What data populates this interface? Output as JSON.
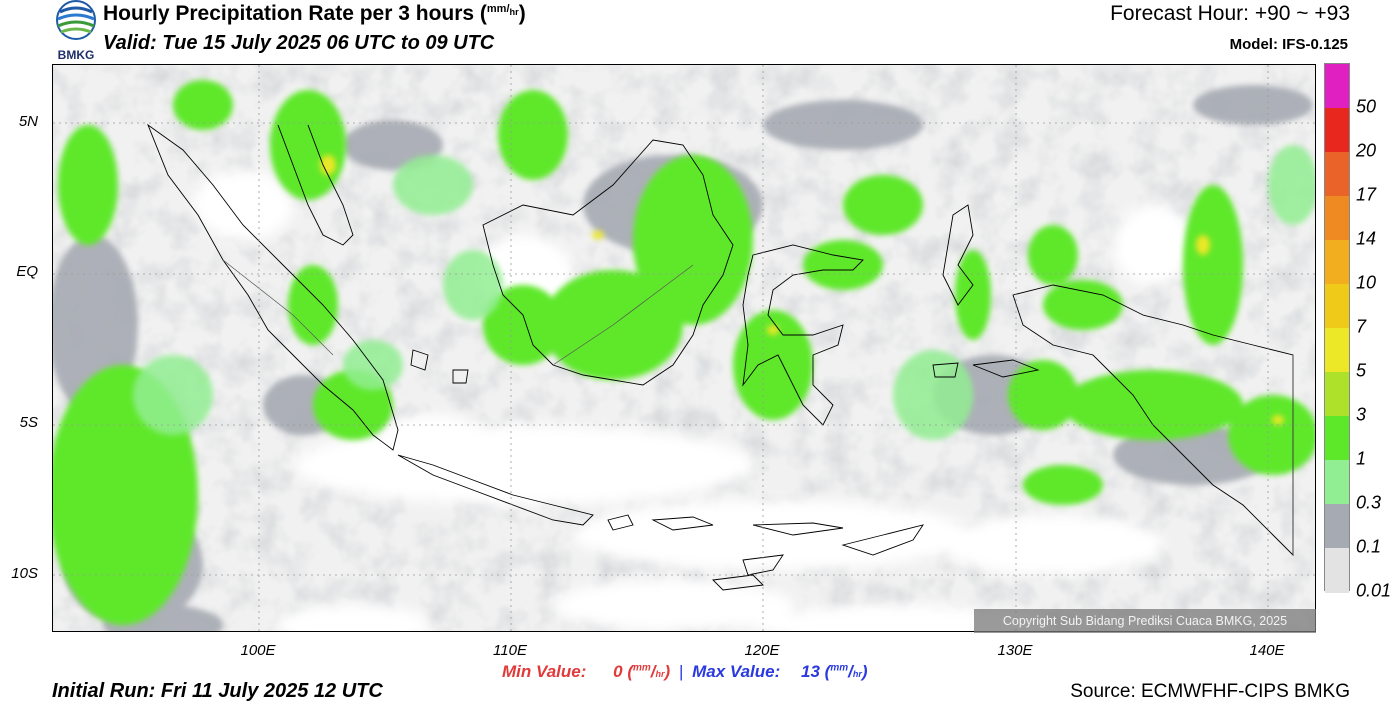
{
  "header": {
    "title": "Hourly Precipitation Rate per 3 hours (",
    "title_unit_num": "mm",
    "title_unit_den": "hr",
    "title_close": ")",
    "valid": "Valid: Tue 15 July 2025 06 UTC to 09 UTC",
    "forecast_hour": "Forecast Hour: +90 ~ +93",
    "model": "Model: IFS-0.125"
  },
  "logo": {
    "text": "BMKG",
    "icon": "bmkg-logo-icon"
  },
  "map": {
    "lat_labels": [
      "5N",
      "EQ",
      "5S",
      "10S"
    ],
    "lon_labels": [
      "100E",
      "110E",
      "120E",
      "130E",
      "140E"
    ],
    "copyright": "Copyright Sub Bidang Prediksi Cuaca BMKG, 2025"
  },
  "legend": {
    "levels": [
      "50",
      "20",
      "17",
      "14",
      "10",
      "7",
      "5",
      "3",
      "1",
      "0.3",
      "0.1",
      "0.01"
    ],
    "colors": [
      "#e020c0",
      "#e8281e",
      "#ea6328",
      "#ef8a22",
      "#f2ae1e",
      "#f0ca18",
      "#ece828",
      "#aee22a",
      "#5ee82a",
      "#92ee92",
      "#a6aab2",
      "#e3e3e3"
    ]
  },
  "stats": {
    "min_label": "Min Value:",
    "min_value": "0",
    "max_label": "Max Value:",
    "max_value": "13",
    "unit_num": "mm",
    "unit_den": "hr",
    "separator": "|"
  },
  "footer": {
    "initial_run": "Initial Run: Fri 11 July 2025 12 UTC",
    "source": "Source: ECMWFHF-CIPS BMKG"
  }
}
